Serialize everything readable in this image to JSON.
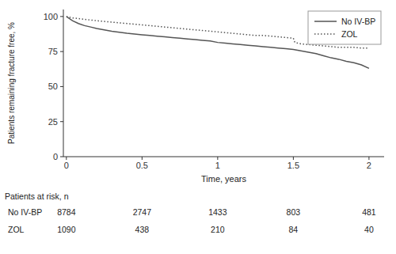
{
  "chart_data": {
    "type": "line",
    "x_label": "Time, years",
    "y_label": "Patients remaining fracture free, %",
    "xlim": [
      -0.02,
      2.1
    ],
    "ylim": [
      0,
      105
    ],
    "xticks": [
      0,
      0.5,
      1,
      1.5,
      2
    ],
    "yticks": [
      0,
      25,
      50,
      75,
      100
    ],
    "grid": false,
    "legend": "upper right",
    "series": [
      {
        "name": "No IV-BP",
        "color": "#555555",
        "line_style": "solid",
        "x": [
          0,
          0.04,
          0.08,
          0.12,
          0.16,
          0.2,
          0.25,
          0.3,
          0.35,
          0.4,
          0.45,
          0.5,
          0.55,
          0.6,
          0.65,
          0.7,
          0.75,
          0.8,
          0.85,
          0.9,
          0.95,
          1.0,
          1.05,
          1.1,
          1.15,
          1.2,
          1.25,
          1.3,
          1.35,
          1.4,
          1.45,
          1.5,
          1.55,
          1.6,
          1.65,
          1.7,
          1.75,
          1.8,
          1.85,
          1.9,
          1.95,
          2.0
        ],
        "values": [
          100,
          97.0,
          95.0,
          93.5,
          92.5,
          91.5,
          90.5,
          89.5,
          88.8,
          88.0,
          87.5,
          87.0,
          86.5,
          86.0,
          85.5,
          85.0,
          84.5,
          84.0,
          83.5,
          83.0,
          82.5,
          81.5,
          81.0,
          80.5,
          80.0,
          79.5,
          79.0,
          78.5,
          78.0,
          77.5,
          77.0,
          76.5,
          75.5,
          74.5,
          73.5,
          72.0,
          70.5,
          69.5,
          68.0,
          67.0,
          65.5,
          63.0
        ]
      },
      {
        "name": "ZOL",
        "color": "#555555",
        "line_style": "dotted",
        "x": [
          0,
          0.04,
          0.08,
          0.12,
          0.16,
          0.2,
          0.25,
          0.3,
          0.35,
          0.4,
          0.45,
          0.5,
          0.55,
          0.6,
          0.65,
          0.7,
          0.75,
          0.8,
          0.85,
          0.9,
          0.95,
          1.0,
          1.05,
          1.1,
          1.15,
          1.2,
          1.25,
          1.3,
          1.35,
          1.4,
          1.45,
          1.5,
          1.51,
          1.55,
          1.6,
          1.65,
          1.7,
          1.75,
          1.8,
          1.85,
          1.9,
          1.95,
          2.0
        ],
        "values": [
          100,
          99.0,
          98.5,
          98.0,
          97.5,
          97.0,
          96.5,
          96.0,
          95.5,
          95.0,
          94.5,
          94.0,
          93.5,
          93.0,
          92.5,
          92.0,
          91.5,
          91.0,
          90.5,
          90.0,
          89.5,
          89.0,
          88.5,
          88.0,
          87.5,
          87.0,
          86.5,
          86.5,
          86.0,
          85.5,
          85.0,
          84.5,
          81.5,
          80.5,
          80.0,
          79.5,
          79.0,
          78.5,
          78.0,
          78.0,
          78.0,
          77.5,
          77.5
        ]
      }
    ],
    "risk_table": {
      "header": "Patients at risk, n",
      "times": [
        0,
        0.5,
        1,
        1.5,
        2
      ],
      "rows": [
        {
          "name": "No IV-BP",
          "values": [
            8784,
            2747,
            1433,
            803,
            481
          ]
        },
        {
          "name": "ZOL",
          "values": [
            1090,
            438,
            210,
            84,
            40
          ]
        }
      ]
    }
  }
}
